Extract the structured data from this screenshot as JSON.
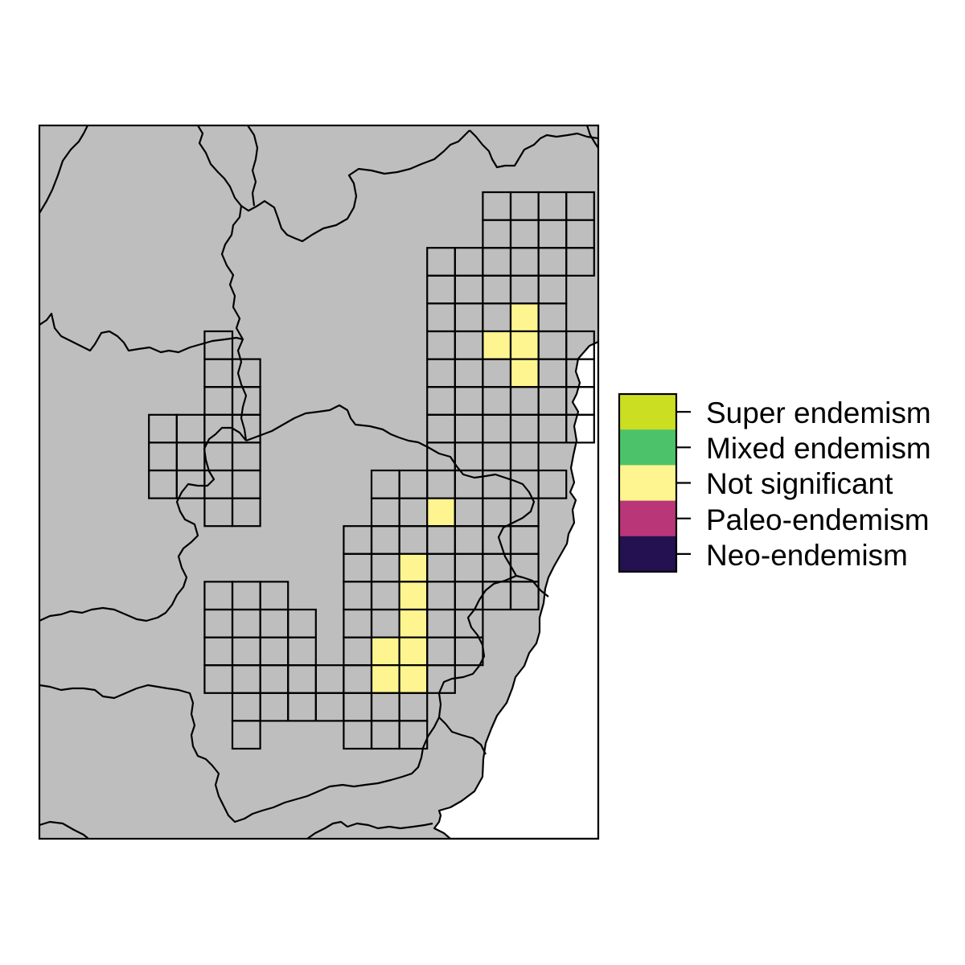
{
  "legend": {
    "items": [
      {
        "label": "Super endemism",
        "color": "#CBDE22"
      },
      {
        "label": "Mixed endemism",
        "color": "#4CC36A"
      },
      {
        "label": "Not significant",
        "color": "#FFF590"
      },
      {
        "label": "Paleo-endemism",
        "color": "#B93778"
      },
      {
        "label": "Neo-endemism",
        "color": "#231151"
      }
    ]
  },
  "colors": {
    "land": "#BEBEBE",
    "sea": "#FFFFFF",
    "border": "#000000"
  },
  "grid": {
    "categories": [
      "Super endemism",
      "Mixed endemism",
      "Not significant",
      "Paleo-endemism",
      "Neo-endemism"
    ],
    "default_category": "none",
    "rows": [
      {
        "r": 0,
        "cells": [
          [
            14,
            0
          ],
          [
            15,
            0
          ],
          [
            16,
            0
          ],
          [
            17,
            0
          ]
        ]
      },
      {
        "r": 1,
        "cells": [
          [
            14,
            0
          ],
          [
            15,
            0
          ],
          [
            16,
            0
          ],
          [
            17,
            0
          ]
        ]
      },
      {
        "r": 2,
        "cells": [
          [
            12,
            0
          ],
          [
            13,
            0
          ],
          [
            14,
            0
          ],
          [
            15,
            0
          ],
          [
            16,
            0
          ],
          [
            17,
            0
          ]
        ]
      },
      {
        "r": 3,
        "cells": [
          [
            12,
            0
          ],
          [
            13,
            0
          ],
          [
            14,
            0
          ],
          [
            15,
            0
          ],
          [
            16,
            0
          ]
        ]
      },
      {
        "r": 4,
        "cells": [
          [
            12,
            0
          ],
          [
            13,
            0
          ],
          [
            14,
            0
          ],
          [
            15,
            1
          ],
          [
            16,
            0
          ]
        ]
      },
      {
        "r": 5,
        "cells": [
          [
            4,
            0
          ],
          [
            12,
            0
          ],
          [
            13,
            0
          ],
          [
            14,
            1
          ],
          [
            15,
            1
          ],
          [
            16,
            0
          ],
          [
            17,
            0
          ]
        ]
      },
      {
        "r": 6,
        "cells": [
          [
            4,
            0
          ],
          [
            5,
            0
          ],
          [
            12,
            0
          ],
          [
            13,
            0
          ],
          [
            14,
            0
          ],
          [
            15,
            1
          ],
          [
            16,
            0
          ],
          [
            17,
            0
          ]
        ]
      },
      {
        "r": 7,
        "cells": [
          [
            4,
            0
          ],
          [
            5,
            0
          ],
          [
            12,
            0
          ],
          [
            13,
            0
          ],
          [
            14,
            0
          ],
          [
            15,
            0
          ],
          [
            16,
            0
          ],
          [
            17,
            0
          ]
        ]
      },
      {
        "r": 8,
        "cells": [
          [
            2,
            0
          ],
          [
            3,
            0
          ],
          [
            4,
            0
          ],
          [
            5,
            0
          ],
          [
            12,
            0
          ],
          [
            13,
            0
          ],
          [
            14,
            0
          ],
          [
            15,
            0
          ],
          [
            16,
            0
          ],
          [
            17,
            0
          ]
        ]
      },
      {
        "r": 9,
        "cells": [
          [
            2,
            0
          ],
          [
            3,
            0
          ],
          [
            4,
            0
          ],
          [
            5,
            0
          ],
          [
            12,
            0
          ],
          [
            13,
            0
          ],
          [
            14,
            0
          ],
          [
            15,
            0
          ]
        ]
      },
      {
        "r": 10,
        "cells": [
          [
            2,
            0
          ],
          [
            3,
            0
          ],
          [
            4,
            0
          ],
          [
            5,
            0
          ],
          [
            10,
            0
          ],
          [
            11,
            0
          ],
          [
            12,
            0
          ],
          [
            13,
            0
          ],
          [
            14,
            0
          ],
          [
            15,
            0
          ],
          [
            16,
            0
          ]
        ]
      },
      {
        "r": 11,
        "cells": [
          [
            4,
            0
          ],
          [
            5,
            0
          ],
          [
            10,
            0
          ],
          [
            11,
            0
          ],
          [
            12,
            1
          ],
          [
            13,
            0
          ],
          [
            14,
            0
          ],
          [
            15,
            0
          ]
        ]
      },
      {
        "r": 12,
        "cells": [
          [
            9,
            0
          ],
          [
            10,
            0
          ],
          [
            11,
            0
          ],
          [
            12,
            0
          ],
          [
            13,
            0
          ],
          [
            14,
            0
          ],
          [
            15,
            0
          ]
        ]
      },
      {
        "r": 13,
        "cells": [
          [
            9,
            0
          ],
          [
            10,
            0
          ],
          [
            11,
            1
          ],
          [
            12,
            0
          ],
          [
            13,
            0
          ],
          [
            14,
            0
          ],
          [
            15,
            0
          ]
        ]
      },
      {
        "r": 14,
        "cells": [
          [
            4,
            0
          ],
          [
            5,
            0
          ],
          [
            6,
            0
          ],
          [
            9,
            0
          ],
          [
            10,
            0
          ],
          [
            11,
            1
          ],
          [
            12,
            0
          ],
          [
            13,
            0
          ],
          [
            14,
            0
          ],
          [
            15,
            0
          ]
        ]
      },
      {
        "r": 15,
        "cells": [
          [
            4,
            0
          ],
          [
            5,
            0
          ],
          [
            6,
            0
          ],
          [
            7,
            0
          ],
          [
            9,
            0
          ],
          [
            10,
            0
          ],
          [
            11,
            1
          ],
          [
            12,
            0
          ],
          [
            13,
            0
          ]
        ]
      },
      {
        "r": 16,
        "cells": [
          [
            4,
            0
          ],
          [
            5,
            0
          ],
          [
            6,
            0
          ],
          [
            7,
            0
          ],
          [
            9,
            0
          ],
          [
            10,
            1
          ],
          [
            11,
            1
          ],
          [
            12,
            0
          ],
          [
            13,
            0
          ]
        ]
      },
      {
        "r": 17,
        "cells": [
          [
            4,
            0
          ],
          [
            5,
            0
          ],
          [
            6,
            0
          ],
          [
            7,
            0
          ],
          [
            8,
            0
          ],
          [
            9,
            0
          ],
          [
            10,
            1
          ],
          [
            11,
            1
          ],
          [
            12,
            0
          ]
        ]
      },
      {
        "r": 18,
        "cells": [
          [
            5,
            0
          ],
          [
            6,
            0
          ],
          [
            7,
            0
          ],
          [
            8,
            0
          ],
          [
            9,
            0
          ],
          [
            10,
            0
          ],
          [
            11,
            0
          ]
        ]
      },
      {
        "r": 19,
        "cells": [
          [
            5,
            0
          ],
          [
            9,
            0
          ],
          [
            10,
            0
          ],
          [
            11,
            0
          ]
        ]
      }
    ]
  }
}
